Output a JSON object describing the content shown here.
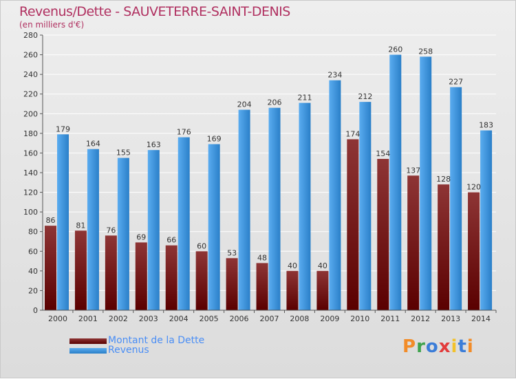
{
  "title": "Revenus/Dette - SAUVETERRE-SAINT-DENIS",
  "subtitle": "(en milliers d'€)",
  "legend": [
    {
      "label": "Montant de la Dette",
      "color": "#7a1a1a"
    },
    {
      "label": "Revenus",
      "color": "#4aa3ea"
    }
  ],
  "logo": "Proxiti",
  "colors": {
    "title": "#b03060",
    "dette_top": "#8e3535",
    "dette_bottom": "#5a0000",
    "revenus_top": "#5aacf0",
    "revenus_bottom": "#2a7fc8",
    "grid": "#ffffff",
    "axis": "#555555"
  },
  "chart_data": {
    "type": "bar",
    "title": "Revenus/Dette - SAUVETERRE-SAINT-DENIS",
    "ylabel": "(en milliers d'€)",
    "categories": [
      "2000",
      "2001",
      "2002",
      "2003",
      "2004",
      "2005",
      "2006",
      "2007",
      "2008",
      "2009",
      "2010",
      "2011",
      "2012",
      "2013",
      "2014"
    ],
    "series": [
      {
        "name": "Montant de la Dette",
        "values": [
          86,
          81,
          76,
          69,
          66,
          60,
          53,
          48,
          40,
          40,
          174,
          154,
          137,
          128,
          120
        ]
      },
      {
        "name": "Revenus",
        "values": [
          179,
          164,
          155,
          163,
          176,
          169,
          204,
          206,
          211,
          234,
          212,
          260,
          258,
          227,
          183
        ]
      }
    ],
    "ylim": [
      0,
      280
    ],
    "yticks": [
      0,
      20,
      40,
      60,
      80,
      100,
      120,
      140,
      160,
      180,
      200,
      220,
      240,
      260,
      280
    ],
    "grid": true,
    "legend_position": "bottom-left"
  }
}
